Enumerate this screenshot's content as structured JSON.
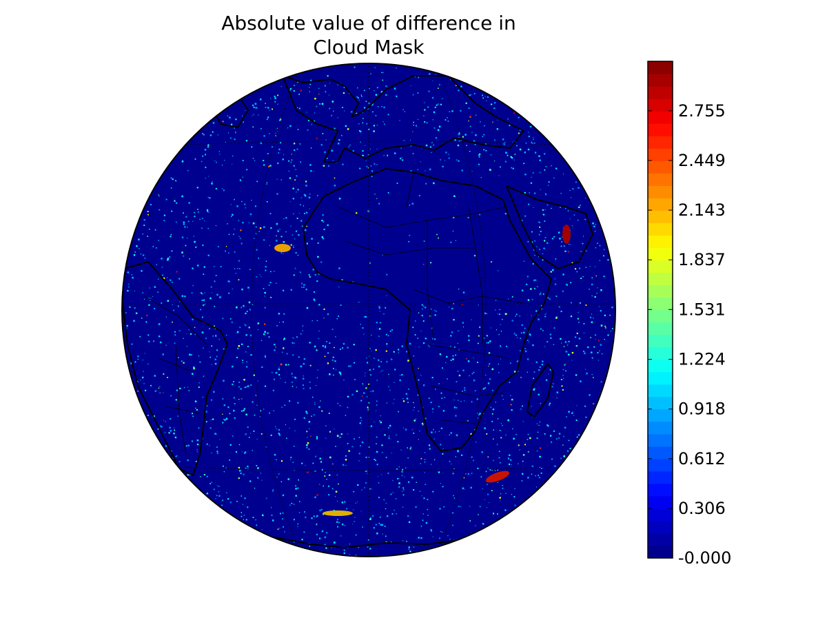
{
  "map": {
    "title_line1": "Absolute value of difference in",
    "title_line2": "Cloud Mask",
    "projection": "geostationary",
    "sub_satellite_longitude": 0,
    "field": "absolute difference in cloud mask",
    "background_color": "#00008f",
    "coastline_color": "#000000",
    "graticule_style": "dotted",
    "hotspots": [
      {
        "region": "Red Sea coast",
        "level": 3.0
      },
      {
        "region": "off South Africa",
        "level": 2.7
      },
      {
        "region": "off Western Sahara",
        "level": 2.3
      },
      {
        "region": "South Atlantic",
        "level": 2.2
      }
    ]
  },
  "colorbar": {
    "colormap": "jet",
    "vmin": 0.0,
    "vmax": 3.06,
    "ticks": [
      -0.0,
      0.306,
      0.612,
      0.918,
      1.224,
      1.531,
      1.837,
      2.143,
      2.449,
      2.755
    ],
    "tick_labels": [
      "-0.000",
      "0.306",
      "0.612",
      "0.918",
      "1.224",
      "1.531",
      "1.837",
      "2.143",
      "2.449",
      "2.755"
    ],
    "levels": 40
  }
}
